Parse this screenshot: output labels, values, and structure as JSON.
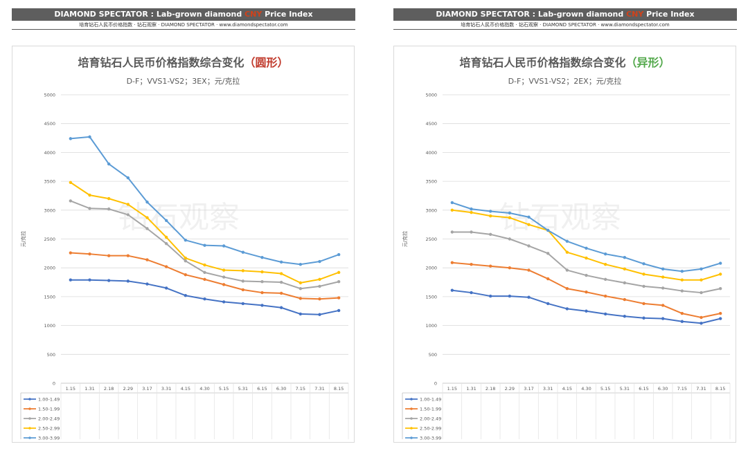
{
  "header": {
    "banner_left": "DIAMOND SPECTATOR : Lab-grown diamond ",
    "banner_cny": "CNY",
    "banner_right": " Price Index",
    "subline": "培育钻石人民币价格指数 · 钻石观察 · DIAMOND SPECTATOR  ·  www.diamondspectator.com"
  },
  "colors": {
    "1.00-1.49": "#4472c4",
    "1.50-1.99": "#ed7d31",
    "2.00-2.49": "#a5a5a5",
    "2.50-2.99": "#ffc000",
    "3.00-3.99": "#5b9bd5"
  },
  "chart_data": [
    {
      "type": "line",
      "title": "培育钻石人民币价格指数综合变化",
      "title_suffix": "（圆形）",
      "subtitle": "D-F；VVS1-VS2；3EX；元/克拉",
      "ylabel": "元/克拉",
      "watermark": "钻石观察",
      "ylim": [
        0,
        5000
      ],
      "yticks": [
        0,
        500,
        1000,
        1500,
        2000,
        2500,
        3000,
        3500,
        4000,
        4500,
        5000
      ],
      "categories": [
        "1.15",
        "1.31",
        "2.18",
        "2.29",
        "3.17",
        "3.31",
        "4.15",
        "4.30",
        "5.15",
        "5.31",
        "6.15",
        "6.30",
        "7.15",
        "7.31",
        "8.15"
      ],
      "legend_position": "bottom",
      "series": [
        {
          "name": "1.00-1.49",
          "values": [
            1790,
            1790,
            1780,
            1770,
            1720,
            1650,
            1520,
            1460,
            1410,
            1380,
            1350,
            1310,
            1200,
            1190,
            1260
          ]
        },
        {
          "name": "1.50-1.99",
          "values": [
            2260,
            2240,
            2210,
            2210,
            2140,
            2020,
            1880,
            1800,
            1710,
            1620,
            1570,
            1560,
            1470,
            1460,
            1480
          ]
        },
        {
          "name": "2.00-2.49",
          "values": [
            3160,
            3030,
            3020,
            2920,
            2680,
            2420,
            2120,
            1920,
            1840,
            1770,
            1760,
            1750,
            1640,
            1680,
            1760
          ]
        },
        {
          "name": "2.50-2.99",
          "values": [
            3480,
            3260,
            3200,
            3100,
            2870,
            2530,
            2170,
            2050,
            1960,
            1950,
            1930,
            1900,
            1740,
            1800,
            1920
          ]
        },
        {
          "name": "3.00-3.99",
          "values": [
            4240,
            4270,
            3800,
            3560,
            3140,
            2820,
            2480,
            2390,
            2380,
            2270,
            2180,
            2100,
            2060,
            2110,
            2230
          ]
        }
      ]
    },
    {
      "type": "line",
      "title": "培育钻石人民币价格指数综合变化",
      "title_suffix": "（异形）",
      "subtitle": "D-F；VVS1-VS2；2EX；元/克拉",
      "ylabel": "元/克拉",
      "watermark": "钻石观察",
      "ylim": [
        0,
        5000
      ],
      "yticks": [
        0,
        500,
        1000,
        1500,
        2000,
        2500,
        3000,
        3500,
        4000,
        4500,
        5000
      ],
      "categories": [
        "1.15",
        "1.31",
        "2.18",
        "2.29",
        "3.17",
        "3.31",
        "4.15",
        "4.30",
        "5.15",
        "5.31",
        "6.15",
        "6.30",
        "7.15",
        "7.31",
        "8.15"
      ],
      "legend_position": "bottom",
      "series": [
        {
          "name": "1.00-1.49",
          "values": [
            1610,
            1570,
            1510,
            1510,
            1490,
            1380,
            1290,
            1250,
            1200,
            1160,
            1130,
            1120,
            1070,
            1040,
            1120
          ]
        },
        {
          "name": "1.50-1.99",
          "values": [
            2090,
            2060,
            2030,
            2000,
            1960,
            1810,
            1640,
            1580,
            1510,
            1450,
            1380,
            1350,
            1210,
            1140,
            1210
          ]
        },
        {
          "name": "2.00-2.49",
          "values": [
            2620,
            2620,
            2580,
            2500,
            2380,
            2250,
            1960,
            1870,
            1800,
            1740,
            1680,
            1650,
            1600,
            1570,
            1640
          ]
        },
        {
          "name": "2.50-2.99",
          "values": [
            3000,
            2960,
            2900,
            2870,
            2750,
            2650,
            2270,
            2170,
            2060,
            1980,
            1890,
            1840,
            1790,
            1790,
            1890
          ]
        },
        {
          "name": "3.00-3.99",
          "values": [
            3130,
            3020,
            2980,
            2950,
            2880,
            2650,
            2460,
            2340,
            2240,
            2180,
            2070,
            1980,
            1940,
            1980,
            2080
          ]
        }
      ]
    }
  ]
}
